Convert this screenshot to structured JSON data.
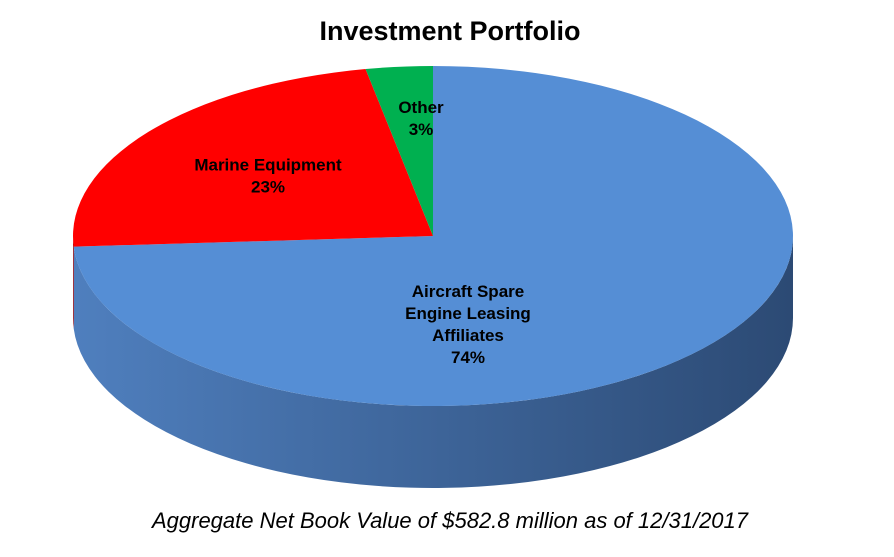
{
  "chart_data": {
    "type": "pie",
    "title": "Investment Portfolio",
    "footnote": "Aggregate Net Book Value of $582.8 million as of 12/31/2017",
    "slices": [
      {
        "name_lines": [
          "Aircraft Spare",
          "Engine Leasing",
          "Affiliates"
        ],
        "value": 74,
        "label": "74%",
        "color": "#558ed5",
        "side_dark": "#2c4a74",
        "side_light": "#4f7fbe"
      },
      {
        "name_lines": [
          "Marine Equipment"
        ],
        "value": 23,
        "label": "23%",
        "color": "#ff0000",
        "side_dark": "#a00000",
        "side_light": "#d00000"
      },
      {
        "name_lines": [
          "Other"
        ],
        "value": 3,
        "label": "3%",
        "color": "#00b050",
        "side_dark": "#006a30",
        "side_light": "#00904a"
      }
    ],
    "start": "12 o'clock",
    "direction": "clockwise",
    "legend": "none"
  }
}
